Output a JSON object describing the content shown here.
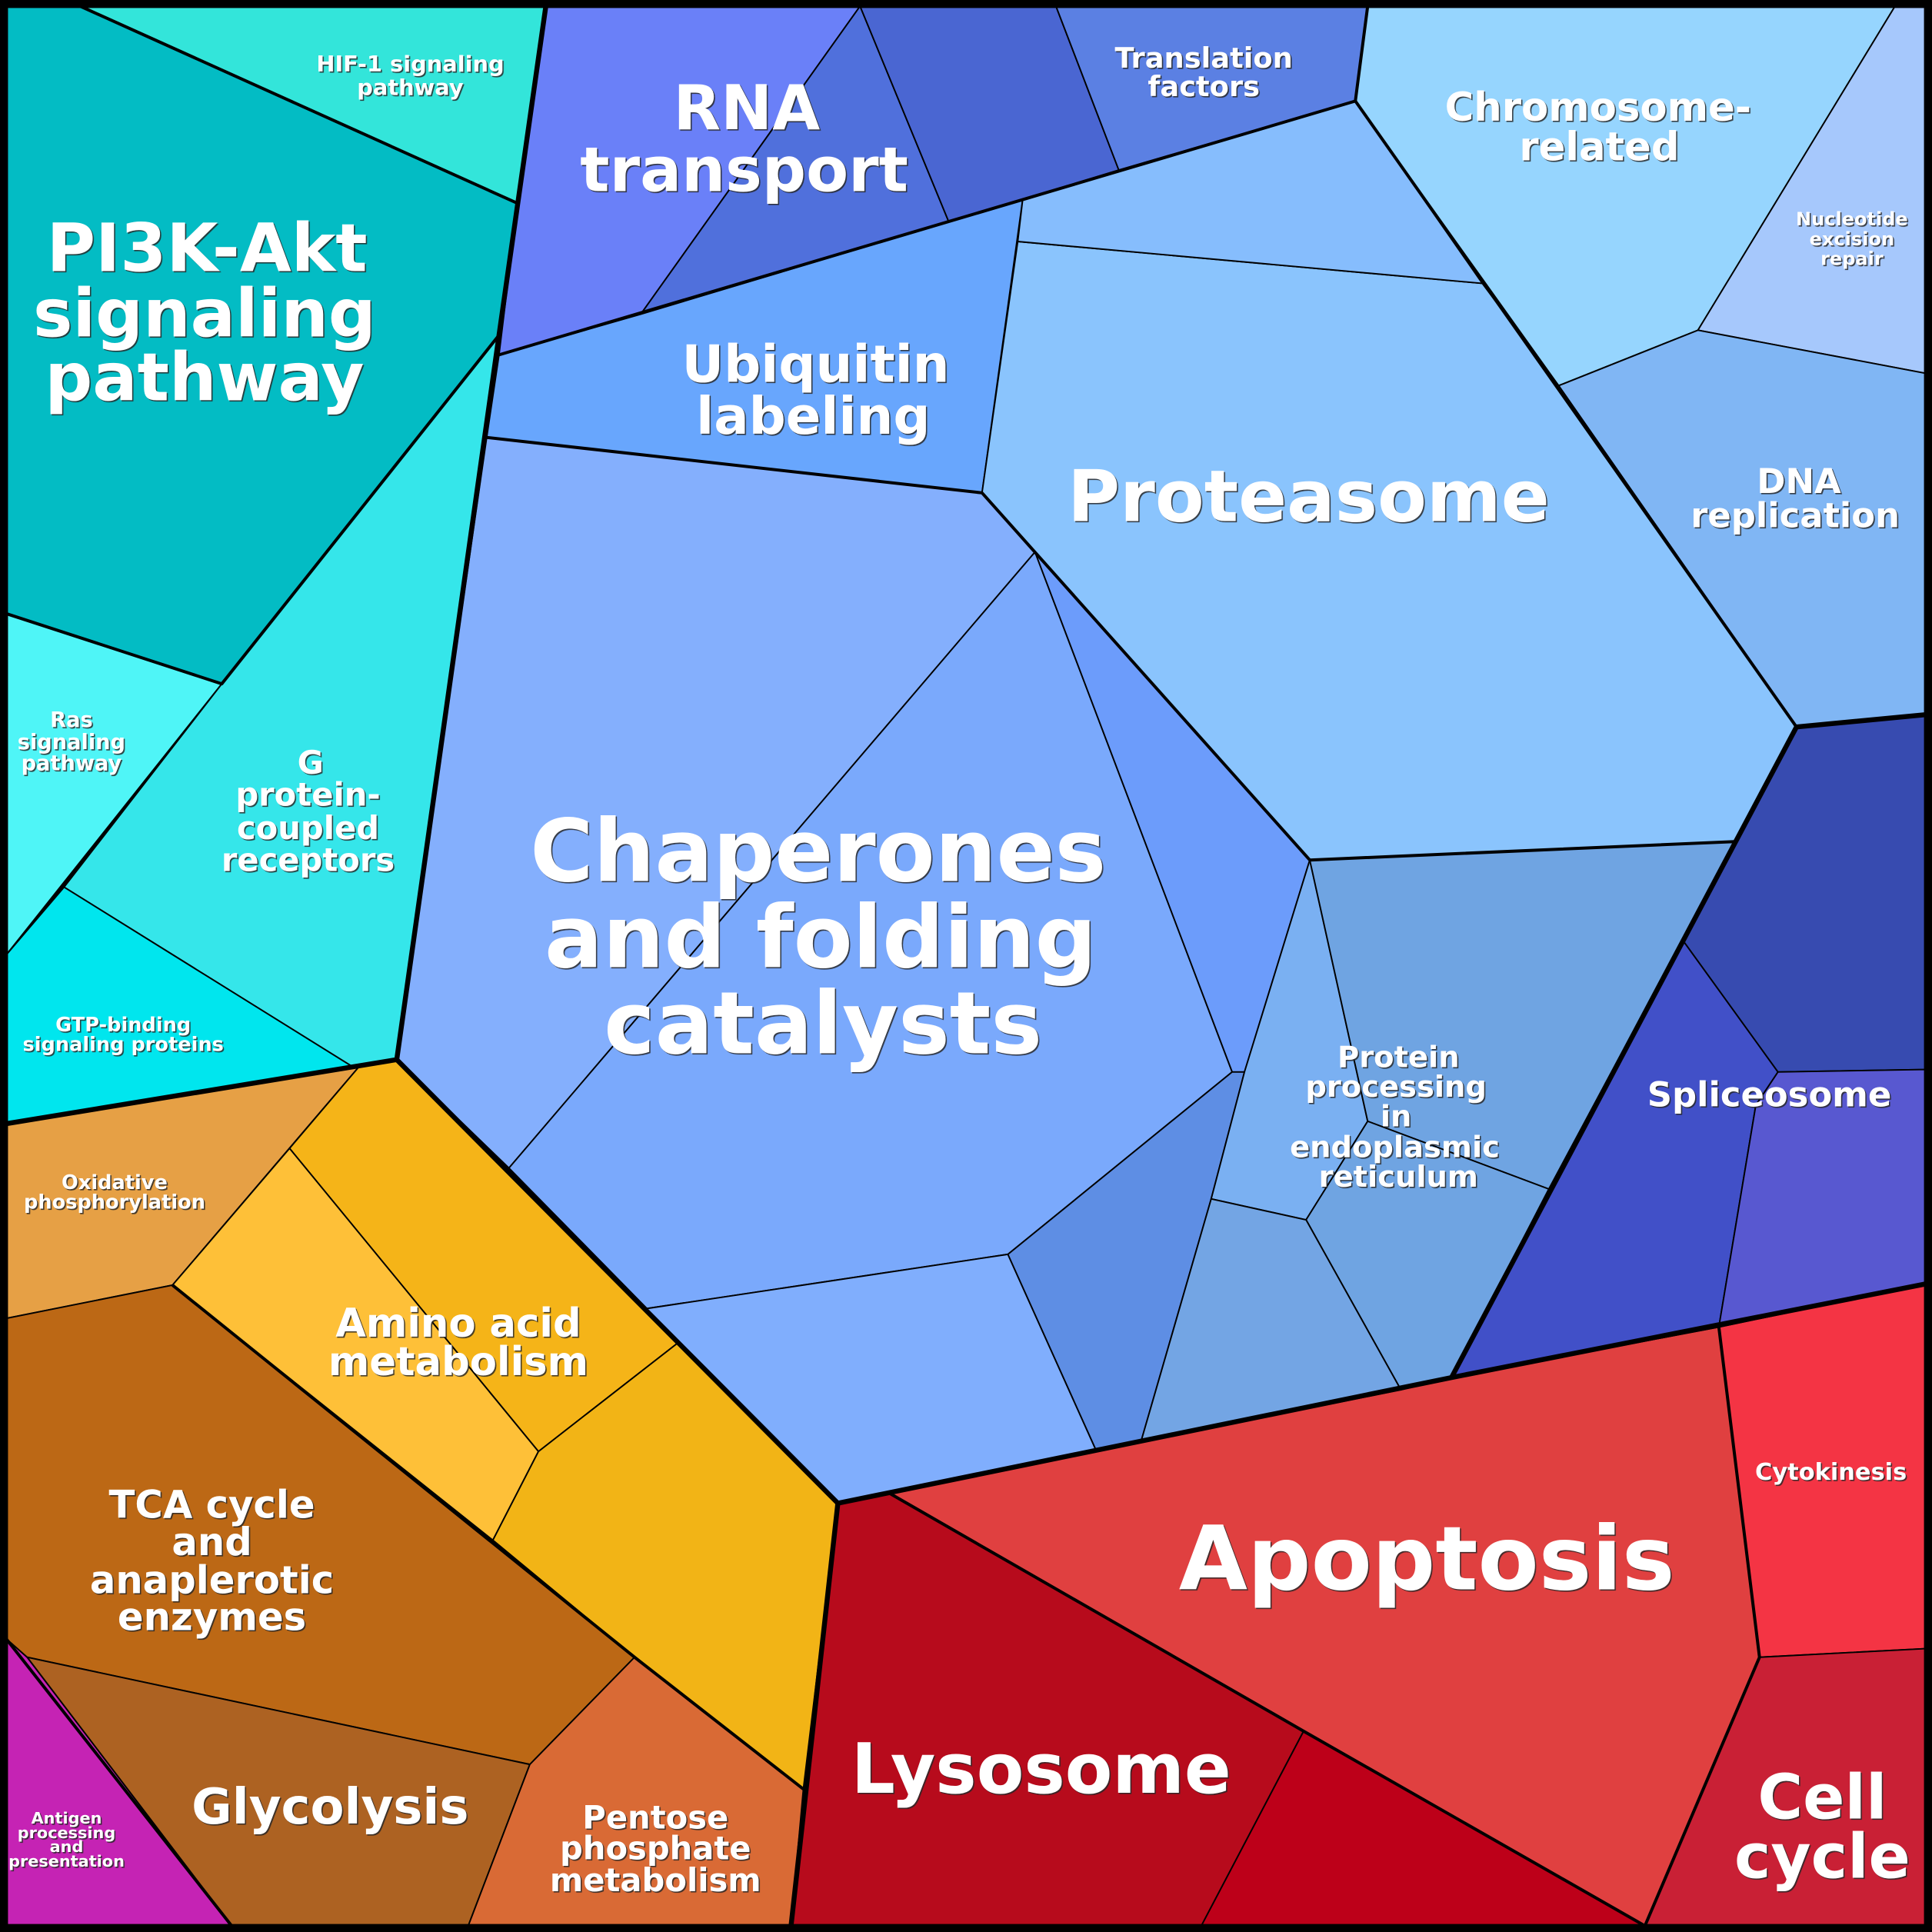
{
  "colors": {
    "signaling": [
      "#03bcc4",
      "#33e5da",
      "#4ff5f7",
      "#35e6ea",
      "#00e6ee"
    ],
    "metabolism": [
      "#e6a045",
      "#f5b418",
      "#fec038",
      "#f2b416",
      "#bc6815",
      "#ad6222",
      "#d96a35",
      "#c523b4"
    ],
    "cell_fate": [
      "#b70b1c",
      "#bd0019",
      "#e04040",
      "#f43444",
      "#c92035"
    ],
    "spliceosome": [
      "#4150c8",
      "#374bb0",
      "#5858d0"
    ],
    "genetic_info": [
      "#96d5fe",
      "#a6c8fc",
      "#80b6f4",
      "#6a80f8",
      "#5070dc",
      "#4a66d2",
      "#5b80e3",
      "#68a6fd",
      "#86bdfd",
      "#8ac4fd"
    ],
    "folding": [
      "#84affd",
      "#7aa9fc",
      "#80aefd",
      "#6c9cfb",
      "#5e8ee4",
      "#7ab0f2",
      "#6fa4e2",
      "#73a5e4"
    ]
  },
  "cells": {
    "hif1": {
      "lines": [
        "HIF-1 signaling",
        "pathway"
      ]
    },
    "pi3k": {
      "lines": [
        "PI3K-Akt",
        "signaling",
        "pathway"
      ]
    },
    "ras": {
      "lines": [
        "Ras",
        "signaling",
        "pathway"
      ]
    },
    "gpcr": {
      "lines": [
        "G",
        "protein-",
        "coupled",
        "receptors"
      ]
    },
    "gtp": {
      "lines": [
        "GTP-binding",
        "signaling proteins"
      ]
    },
    "oxphos": {
      "lines": [
        "Oxidative",
        "phosphorylation"
      ]
    },
    "amino": {
      "lines": [
        "Amino acid",
        "metabolism"
      ]
    },
    "tca": {
      "lines": [
        "TCA cycle",
        "and",
        "anaplerotic",
        "enzymes"
      ]
    },
    "glycolysis": {
      "lines": [
        "Glycolysis"
      ]
    },
    "antigen": {
      "lines": [
        "Antigen",
        "processing",
        "and",
        "presentation"
      ]
    },
    "pentose": {
      "lines": [
        "Pentose",
        "phosphate",
        "metabolism"
      ]
    },
    "lysosome": {
      "lines": [
        "Lysosome"
      ]
    },
    "apoptosis": {
      "lines": [
        "Apoptosis"
      ]
    },
    "cytokinesis": {
      "lines": [
        "Cytokinesis"
      ]
    },
    "cellcycle": {
      "lines": [
        "Cell",
        "cycle"
      ]
    },
    "spliceosome": {
      "lines": [
        "Spliceosome"
      ]
    },
    "er": {
      "lines": [
        "Protein",
        "processing",
        "in",
        "endoplasmic",
        "reticulum"
      ]
    },
    "chaperones": {
      "lines": [
        "Chaperones",
        "and folding",
        "catalysts"
      ]
    },
    "proteasome": {
      "lines": [
        "Proteasome"
      ]
    },
    "ubiquitin": {
      "lines": [
        "Ubiquitin",
        "labeling"
      ]
    },
    "rna": {
      "lines": [
        "RNA",
        "transport"
      ]
    },
    "translation": {
      "lines": [
        "Translation",
        "factors"
      ]
    },
    "chromosome": {
      "lines": [
        "Chromosome-",
        "related"
      ]
    },
    "ner": {
      "lines": [
        "Nucleotide",
        "excision",
        "repair"
      ]
    },
    "dna": {
      "lines": [
        "DNA",
        "replication"
      ]
    }
  }
}
